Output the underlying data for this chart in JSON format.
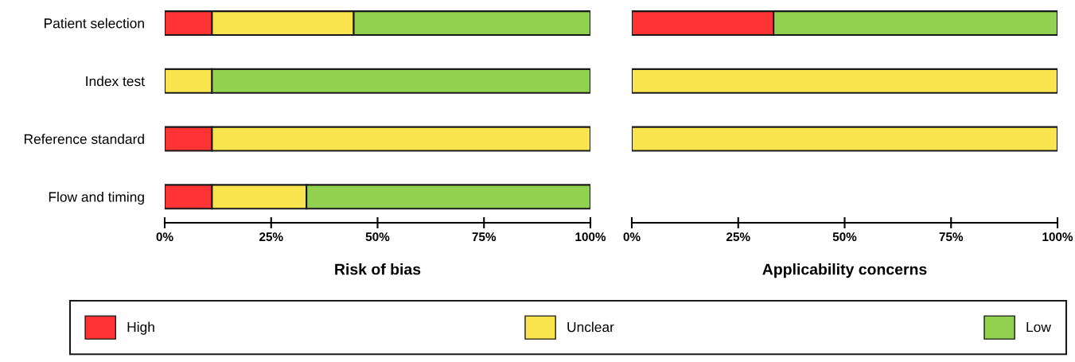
{
  "chart_data": [
    {
      "type": "bar",
      "orientation": "horizontal",
      "stacked": true,
      "xlabel": "Risk of bias",
      "categories": [
        "Patient selection",
        "Index test",
        "Reference standard",
        "Flow and timing"
      ],
      "series": [
        {
          "name": "High",
          "color": "#ff3333",
          "values": [
            11.1,
            0,
            11.1,
            11.1
          ]
        },
        {
          "name": "Unclear",
          "color": "#fbe54f",
          "values": [
            33.3,
            11.1,
            88.9,
            22.2
          ]
        },
        {
          "name": "Low",
          "color": "#92d050",
          "values": [
            55.6,
            88.9,
            0,
            66.7
          ]
        }
      ],
      "xlim": [
        0,
        100
      ],
      "xticks": [
        {
          "value": 0,
          "label": "0%"
        },
        {
          "value": 25,
          "label": "25%"
        },
        {
          "value": 50,
          "label": "50%"
        },
        {
          "value": 75,
          "label": "75%"
        },
        {
          "value": 100,
          "label": "100%"
        }
      ],
      "grid": false,
      "legend": "bottom"
    },
    {
      "type": "bar",
      "orientation": "horizontal",
      "stacked": true,
      "xlabel": "Applicability concerns",
      "categories": [
        null,
        null,
        null,
        null
      ],
      "series": [
        {
          "color": "#ff3333",
          "values": [
            33.3,
            0,
            0,
            null
          ]
        },
        {
          "color": "#fbe54f",
          "values": [
            0,
            100,
            100,
            null
          ]
        },
        {
          "color": "#92d050",
          "values": [
            66.7,
            0,
            0,
            null
          ]
        }
      ],
      "xlim": [
        0,
        100
      ],
      "xticks": [
        {
          "value": 0,
          "label": "0%"
        },
        {
          "value": 25,
          "label": "25%"
        },
        {
          "value": 50,
          "label": "50%"
        },
        {
          "value": 75,
          "label": "75%"
        },
        {
          "value": 100,
          "label": "100%"
        }
      ],
      "grid": false
    }
  ]
}
